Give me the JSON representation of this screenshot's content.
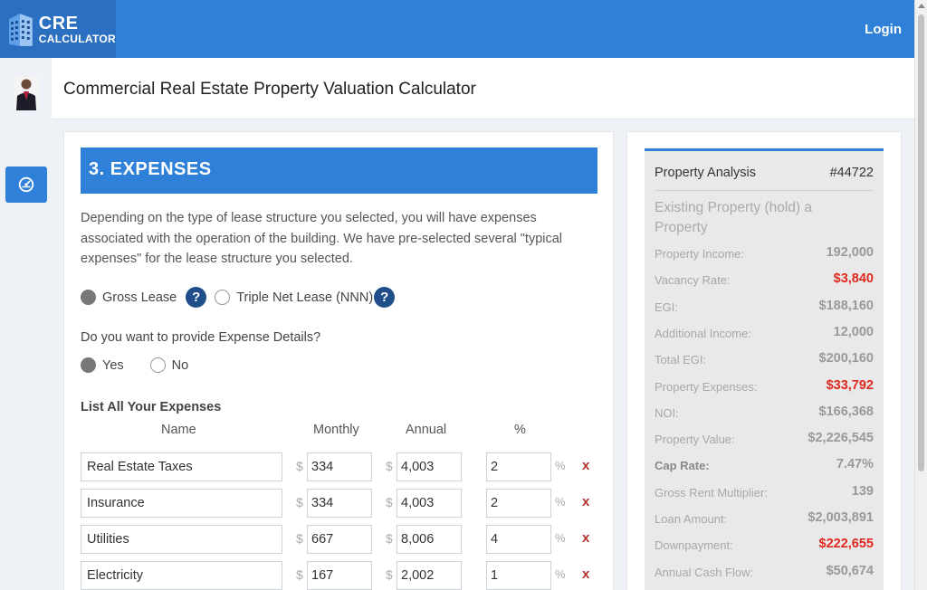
{
  "brand": {
    "line1": "CRE",
    "line2": "CALCULATOR"
  },
  "nav": {
    "login": "Login"
  },
  "page_title": "Commercial Real Estate Property Valuation Calculator",
  "section": {
    "title": "3. EXPENSES",
    "description": "Depending on the type of lease structure you selected, you will have expenses associated with the operation of the building. We have pre-selected several \"typical expenses\" for the lease structure you selected."
  },
  "lease": {
    "gross": "Gross Lease",
    "nnn": "Triple Net Lease (NNN)",
    "selected": "gross"
  },
  "details": {
    "question": "Do you want to provide Expense Details?",
    "yes": "Yes",
    "no": "No",
    "selected": "yes"
  },
  "expenses": {
    "title": "List All Your Expenses",
    "headers": {
      "name": "Name",
      "monthly": "Monthly",
      "annual": "Annual",
      "pct": "%"
    },
    "currency": "$",
    "percent_sign": "%",
    "delete": "x",
    "rows": [
      {
        "name": "Real Estate Taxes",
        "monthly": "334",
        "annual": "4,003",
        "pct": "2"
      },
      {
        "name": "Insurance",
        "monthly": "334",
        "annual": "4,003",
        "pct": "2"
      },
      {
        "name": "Utilities",
        "monthly": "667",
        "annual": "8,006",
        "pct": "4"
      },
      {
        "name": "Electricity",
        "monthly": "167",
        "annual": "2,002",
        "pct": "1"
      }
    ]
  },
  "analysis": {
    "title": "Property Analysis",
    "id": "#44722",
    "subtitle": "Existing Property (hold) a Property",
    "rows": [
      {
        "label": "Property Income:",
        "value": "192,000",
        "color": "gray",
        "bold": false
      },
      {
        "label": "Vacancy Rate:",
        "value": "$3,840",
        "color": "red",
        "bold": false
      },
      {
        "label": "EGI:",
        "value": "$188,160",
        "color": "gray",
        "bold": false
      },
      {
        "label": "Additional Income:",
        "value": "12,000",
        "color": "gray",
        "bold": false
      },
      {
        "label": "Total EGI:",
        "value": "$200,160",
        "color": "gray",
        "bold": false
      },
      {
        "label": "Property Expenses:",
        "value": "$33,792",
        "color": "red",
        "bold": false
      },
      {
        "label": "NOI:",
        "value": "$166,368",
        "color": "gray",
        "bold": false
      },
      {
        "label": "Property Value:",
        "value": "$2,226,545",
        "color": "gray",
        "bold": false
      },
      {
        "label": "Cap Rate:",
        "value": "7.47%",
        "color": "gray",
        "bold": true
      },
      {
        "label": "Gross Rent Multiplier:",
        "value": "139",
        "color": "gray",
        "bold": false
      },
      {
        "label": "Loan Amount:",
        "value": "$2,003,891",
        "color": "gray",
        "bold": false
      },
      {
        "label": "Downpayment:",
        "value": "$222,655",
        "color": "red",
        "bold": false
      },
      {
        "label": "Annual Cash Flow:",
        "value": "$50,674",
        "color": "gray",
        "bold": false
      }
    ]
  },
  "colors": {
    "primary": "#2f80d8",
    "help": "#1f4e8a",
    "negative": "#e0281e"
  }
}
